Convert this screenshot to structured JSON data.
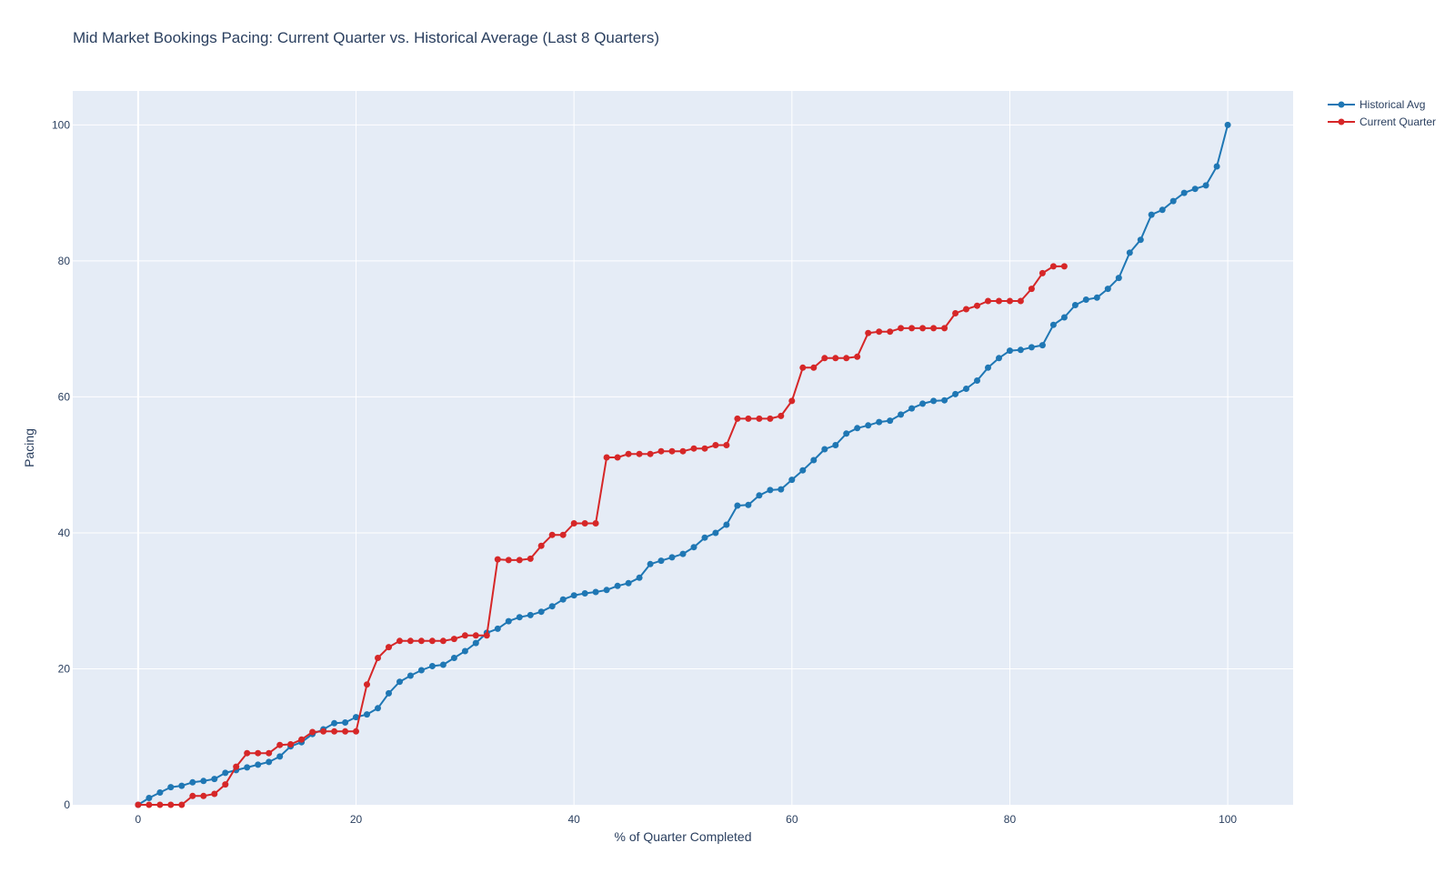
{
  "chart_data": {
    "type": "line",
    "title": "Mid Market Bookings Pacing: Current Quarter vs. Historical Average (Last 8 Quarters)",
    "xlabel": "% of Quarter Completed",
    "ylabel": "Pacing",
    "xlim": [
      -6,
      106
    ],
    "ylim": [
      0,
      105
    ],
    "xticks": [
      0,
      20,
      40,
      60,
      80,
      100
    ],
    "yticks": [
      0,
      20,
      40,
      60,
      80,
      100
    ],
    "grid": true,
    "legend_position": "top-right",
    "background_color": "#e5ecf6",
    "series": [
      {
        "name": "Historical Avg",
        "color": "#1f77b4",
        "x": [
          0,
          1,
          2,
          3,
          4,
          5,
          6,
          7,
          8,
          9,
          10,
          11,
          12,
          13,
          14,
          15,
          16,
          17,
          18,
          19,
          20,
          21,
          22,
          23,
          24,
          25,
          26,
          27,
          28,
          29,
          30,
          31,
          32,
          33,
          34,
          35,
          36,
          37,
          38,
          39,
          40,
          41,
          42,
          43,
          44,
          45,
          46,
          47,
          48,
          49,
          50,
          51,
          52,
          53,
          54,
          55,
          56,
          57,
          58,
          59,
          60,
          61,
          62,
          63,
          64,
          65,
          66,
          67,
          68,
          69,
          70,
          71,
          72,
          73,
          74,
          75,
          76,
          77,
          78,
          79,
          80,
          81,
          82,
          83,
          84,
          85,
          86,
          87,
          88,
          89,
          90,
          91,
          92,
          93,
          94,
          95,
          96,
          97,
          98,
          99,
          100
        ],
        "values": [
          0,
          1.0,
          1.8,
          2.6,
          2.8,
          3.3,
          3.5,
          3.8,
          4.7,
          5.1,
          5.5,
          5.9,
          6.3,
          7.1,
          8.6,
          9.2,
          10.4,
          11.1,
          12.0,
          12.1,
          12.9,
          13.3,
          14.2,
          16.4,
          18.1,
          19.0,
          19.8,
          20.4,
          20.6,
          21.6,
          22.6,
          23.8,
          25.3,
          25.9,
          27.0,
          27.6,
          27.9,
          28.4,
          29.2,
          30.2,
          30.8,
          31.1,
          31.3,
          31.6,
          32.2,
          32.6,
          33.4,
          35.4,
          35.9,
          36.4,
          36.9,
          37.9,
          39.3,
          40.0,
          41.2,
          44.0,
          44.1,
          45.5,
          46.3,
          46.4,
          47.8,
          49.2,
          50.7,
          52.3,
          52.9,
          54.6,
          55.4,
          55.8,
          56.3,
          56.5,
          57.4,
          58.3,
          59.0,
          59.4,
          59.5,
          60.4,
          61.2,
          62.4,
          64.3,
          65.7,
          66.8,
          66.9,
          67.3,
          67.6,
          70.6,
          71.7,
          73.5,
          74.3,
          74.6,
          75.9,
          77.5,
          81.2,
          83.1,
          86.8,
          87.5,
          88.8,
          90.0,
          90.6,
          91.1,
          93.9,
          100.0
        ]
      },
      {
        "name": "Current Quarter",
        "color": "#d62728",
        "x": [
          0,
          1,
          2,
          3,
          4,
          5,
          6,
          7,
          8,
          9,
          10,
          11,
          12,
          13,
          14,
          15,
          16,
          17,
          18,
          19,
          20,
          21,
          22,
          23,
          24,
          25,
          26,
          27,
          28,
          29,
          30,
          31,
          32,
          33,
          34,
          35,
          36,
          37,
          38,
          39,
          40,
          41,
          42,
          43,
          44,
          45,
          46,
          47,
          48,
          49,
          50,
          51,
          52,
          53,
          54,
          55,
          56,
          57,
          58,
          59,
          60,
          61,
          62,
          63,
          64,
          65,
          66,
          67,
          68,
          69,
          70,
          71,
          72,
          73,
          74,
          75,
          76,
          77,
          78,
          79,
          80,
          81,
          82,
          83,
          84,
          85
        ],
        "values": [
          0,
          0,
          0,
          0,
          0,
          1.3,
          1.3,
          1.6,
          3.0,
          5.6,
          7.6,
          7.6,
          7.6,
          8.8,
          8.9,
          9.6,
          10.7,
          10.8,
          10.8,
          10.8,
          10.8,
          17.7,
          21.6,
          23.2,
          24.1,
          24.1,
          24.1,
          24.1,
          24.1,
          24.4,
          24.9,
          24.9,
          24.9,
          36.1,
          36.0,
          36.0,
          36.2,
          38.1,
          39.7,
          39.7,
          41.4,
          41.4,
          41.4,
          51.1,
          51.1,
          51.6,
          51.6,
          51.6,
          52.0,
          52.0,
          52.0,
          52.4,
          52.4,
          52.9,
          52.9,
          56.8,
          56.8,
          56.8,
          56.8,
          57.2,
          59.4,
          64.3,
          64.3,
          65.7,
          65.7,
          65.7,
          65.9,
          69.4,
          69.6,
          69.6,
          70.1,
          70.1,
          70.1,
          70.1,
          70.1,
          72.3,
          72.9,
          73.4,
          74.1,
          74.1,
          74.1,
          74.1,
          75.9,
          78.2,
          79.2,
          79.2
        ]
      }
    ]
  }
}
